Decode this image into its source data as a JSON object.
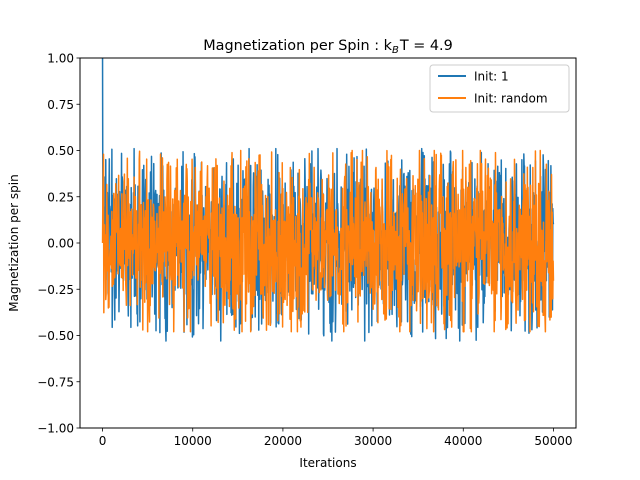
{
  "chart_data": {
    "type": "line",
    "title": "Magnetization per Spin : k",
    "title_sub": "B",
    "title_tail": "T = 4.9",
    "xlabel": "Iterations",
    "ylabel": "Magnetization per spin",
    "xlim": [
      -2500,
      52500
    ],
    "ylim": [
      -1.0,
      1.0
    ],
    "x_ticks": [
      0,
      10000,
      20000,
      30000,
      40000,
      50000
    ],
    "x_tick_labels": [
      "0",
      "10000",
      "20000",
      "30000",
      "40000",
      "50000"
    ],
    "y_ticks": [
      -1.0,
      -0.75,
      -0.5,
      -0.25,
      0.0,
      0.25,
      0.5,
      0.75,
      1.0
    ],
    "y_tick_labels": [
      "−1.00",
      "−0.75",
      "−0.50",
      "−0.25",
      "0.00",
      "0.25",
      "0.50",
      "0.75",
      "1.00"
    ],
    "grid": false,
    "legend_position": "top-right",
    "series": [
      {
        "name": "Init: 1",
        "color": "#1f77b4",
        "x_range": [
          0,
          50000
        ],
        "initial_value": 1.0,
        "band_upper": 0.45,
        "band_lower": -0.45,
        "peak_max": 0.51,
        "peak_min": -0.53
      },
      {
        "name": "Init: random",
        "color": "#ff7f0e",
        "x_range": [
          0,
          50000
        ],
        "initial_value": 0.0,
        "band_upper": 0.45,
        "band_lower": -0.45,
        "peak_max": 0.5,
        "peak_min": -0.48
      }
    ]
  }
}
